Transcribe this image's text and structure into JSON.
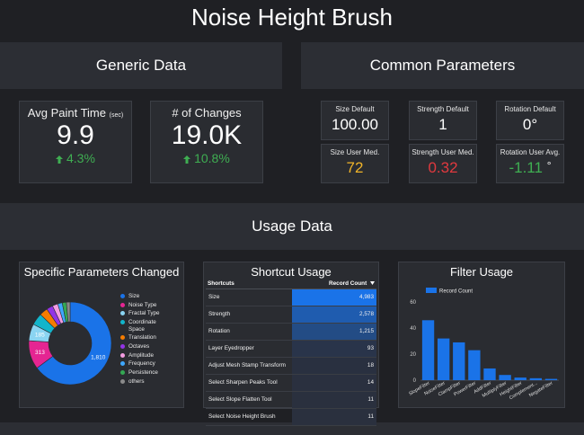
{
  "page": {
    "title": "Noise Height Brush"
  },
  "sections": {
    "generic": "Generic Data",
    "common": "Common Parameters",
    "usage": "Usage Data"
  },
  "stats": {
    "paint_time": {
      "label": "Avg Paint Time",
      "unit": "(sec)",
      "value": "9.9",
      "delta": "4.3%"
    },
    "changes": {
      "label": "# of Changes",
      "value": "19.0K",
      "delta": "10.8%"
    }
  },
  "params": [
    {
      "label": "Size Default",
      "value": "100.00",
      "color": "#ffffff"
    },
    {
      "label": "Strength Default",
      "value": "1",
      "color": "#ffffff"
    },
    {
      "label": "Rotation Default",
      "value": "0°",
      "color": "#ffffff"
    },
    {
      "label": "Size User Med.",
      "value": "72",
      "color": "#f0b429"
    },
    {
      "label": "Strength User Med.",
      "value": "0.32",
      "color": "#e0393e"
    },
    {
      "label": "Rotation User Avg.",
      "value": "-1.11",
      "unit": "°",
      "color": "#3fae52"
    }
  ],
  "icons": {
    "delta": "arrow-up-icon",
    "sort": "sort-desc-icon"
  },
  "pie": {
    "title": "Specific Parameters Changed",
    "chart_data": {
      "type": "pie",
      "donut": true,
      "labels": [
        "Size",
        "Noise Type",
        "Fractal Type",
        "Coordinate Space",
        "Translation",
        "Octaves",
        "Amplitude",
        "Frequency",
        "Persistence",
        "others"
      ],
      "values": [
        1810,
        313,
        185,
        130,
        90,
        70,
        60,
        50,
        45,
        40
      ],
      "value_labels": [
        "1,810",
        "313",
        "185",
        "",
        "",
        "",
        "",
        "",
        "",
        ""
      ],
      "colors": [
        "#1a73e8",
        "#e52592",
        "#8ad4f2",
        "#12b5cb",
        "#f57c00",
        "#9334e6",
        "#f39ce1",
        "#3ea7ff",
        "#34a853",
        "#8a8a8a"
      ],
      "legend": "right"
    }
  },
  "shortcuts": {
    "title": "Shortcut Usage",
    "columns": [
      "Shortcuts",
      "Record Count"
    ],
    "rows": [
      {
        "name": "Size",
        "count": "4,983",
        "value": 4983
      },
      {
        "name": "Strength",
        "count": "2,578",
        "value": 2578
      },
      {
        "name": "Rotation",
        "count": "1,215",
        "value": 1215
      },
      {
        "name": "Layer Eyedropper",
        "count": "93",
        "value": 93
      },
      {
        "name": "Adjust Mesh Stamp Transform",
        "count": "18",
        "value": 18
      },
      {
        "name": "Select Sharpen Peaks Tool",
        "count": "14",
        "value": 14
      },
      {
        "name": "Select Slope Flatten Tool",
        "count": "11",
        "value": 11
      },
      {
        "name": "Select Noise Height Brush",
        "count": "11",
        "value": 11
      }
    ]
  },
  "filter": {
    "title": "Filter Usage",
    "chart_data": {
      "type": "bar",
      "legend": "top-left",
      "series": [
        {
          "name": "Record Count",
          "color": "#1a73e8",
          "values": [
            46,
            32,
            29,
            23,
            9,
            4,
            2,
            1.5,
            1
          ]
        }
      ],
      "categories": [
        "SlopeFilter",
        "NoiseFilter",
        "ClampFilter",
        "PowerFilter",
        "AddFilter",
        "MultiplyFilter",
        "HeightFilter",
        "Complement...",
        "NegateFilter"
      ],
      "yticks": [
        0,
        20,
        40,
        60
      ],
      "ylim": [
        0,
        60
      ],
      "grid": false
    }
  }
}
